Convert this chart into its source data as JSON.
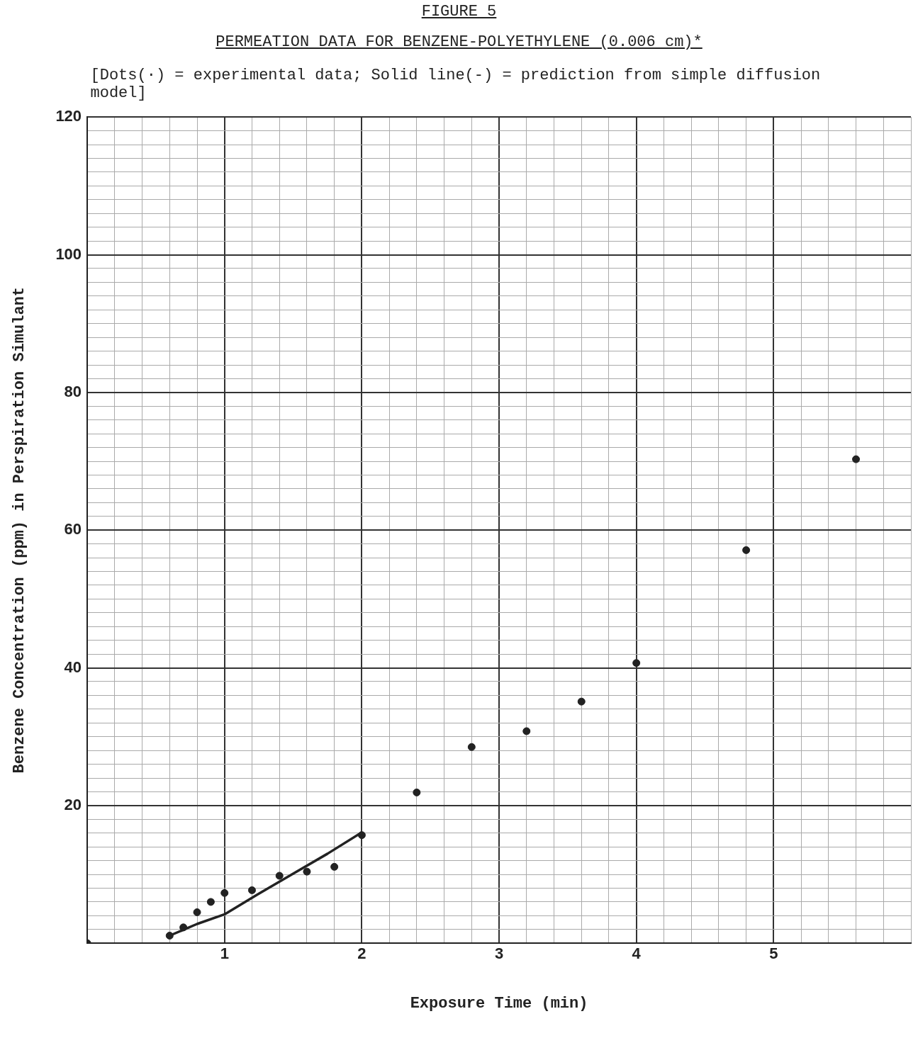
{
  "chart_data": {
    "type": "scatter",
    "title": "FIGURE 5",
    "subtitle": "PERMEATION DATA FOR BENZENE-POLYETHYLENE (0.006 cm)*",
    "annotations": [
      "[Dots(·) = experimental data; Solid line(-) = prediction from simple diffusion model]"
    ],
    "xlabel": "Exposure Time (min)",
    "ylabel": "Benzene Concentration (ppm) in Perspiration Simulant",
    "series": [
      {
        "marker": "circle",
        "color": "#222222",
        "x": [
          0,
          0.6,
          0.7,
          0.8,
          0.9,
          1.0,
          1.2,
          1.4,
          1.6,
          1.8,
          2.0,
          2.4,
          2.8,
          3.2,
          3.6,
          4.0,
          4.8,
          5.6
        ],
        "values": [
          0,
          1.1,
          2.3,
          4.5,
          6.0,
          7.3,
          7.7,
          9.8,
          10.4,
          11.1,
          15.7,
          21.9,
          28.5,
          30.8,
          35.1,
          40.7,
          57.1,
          70.3
        ]
      },
      {
        "type": "line",
        "marker": "none",
        "color": "#222222",
        "x": [
          0.6,
          0.8,
          1.0,
          1.25,
          1.5,
          1.75,
          2.0
        ],
        "values": [
          1.1,
          2.8,
          4.2,
          7.2,
          10.1,
          13.0,
          16.1
        ]
      }
    ],
    "line_style": "solid",
    "grid": true,
    "legend": false,
    "xlim": [
      0,
      6
    ],
    "xticks": [
      {
        "value": 0,
        "label": null
      },
      {
        "value": 0.2,
        "label": null
      },
      {
        "value": 0.4,
        "label": null
      },
      {
        "value": 0.6,
        "label": null
      },
      {
        "value": 0.8,
        "label": null
      },
      1,
      {
        "value": 1.2,
        "label": null
      },
      {
        "value": 1.4,
        "label": null
      },
      {
        "value": 1.6,
        "label": null
      },
      {
        "value": 1.8,
        "label": null
      },
      2,
      {
        "value": 2.2,
        "label": null
      },
      {
        "value": 2.4,
        "label": null
      },
      {
        "value": 2.6,
        "label": null
      },
      {
        "value": 2.8,
        "label": null
      },
      3,
      {
        "value": 3.2,
        "label": null
      },
      {
        "value": 3.4,
        "label": null
      },
      {
        "value": 3.6,
        "label": null
      },
      {
        "value": 3.8,
        "label": null
      },
      4,
      {
        "value": 4.2,
        "label": null
      },
      {
        "value": 4.4,
        "label": null
      },
      {
        "value": 4.6,
        "label": null
      },
      {
        "value": 4.8,
        "label": null
      },
      5,
      {
        "value": 5.2,
        "label": null
      },
      {
        "value": 5.4,
        "label": null
      },
      {
        "value": 5.6,
        "label": null
      },
      {
        "value": 5.8,
        "label": null
      },
      {
        "value": 6,
        "label": null
      }
    ],
    "ylim": [
      0,
      120
    ],
    "yticks": [
      {
        "value": 0,
        "label": null
      },
      {
        "value": 2,
        "label": null
      },
      {
        "value": 4,
        "label": null
      },
      {
        "value": 6,
        "label": null
      },
      {
        "value": 8,
        "label": null
      },
      {
        "value": 10,
        "label": null
      },
      {
        "value": 12,
        "label": null
      },
      {
        "value": 14,
        "label": null
      },
      {
        "value": 16,
        "label": null
      },
      {
        "value": 18,
        "label": null
      },
      20,
      {
        "value": 22,
        "label": null
      },
      {
        "value": 24,
        "label": null
      },
      {
        "value": 26,
        "label": null
      },
      {
        "value": 28,
        "label": null
      },
      {
        "value": 30,
        "label": null
      },
      {
        "value": 32,
        "label": null
      },
      {
        "value": 34,
        "label": null
      },
      {
        "value": 36,
        "label": null
      },
      {
        "value": 38,
        "label": null
      },
      40,
      {
        "value": 42,
        "label": null
      },
      {
        "value": 44,
        "label": null
      },
      {
        "value": 46,
        "label": null
      },
      {
        "value": 48,
        "label": null
      },
      {
        "value": 50,
        "label": null
      },
      {
        "value": 52,
        "label": null
      },
      {
        "value": 54,
        "label": null
      },
      {
        "value": 56,
        "label": null
      },
      {
        "value": 58,
        "label": null
      },
      60,
      {
        "value": 62,
        "label": null
      },
      {
        "value": 64,
        "label": null
      },
      {
        "value": 66,
        "label": null
      },
      {
        "value": 68,
        "label": null
      },
      {
        "value": 70,
        "label": null
      },
      {
        "value": 72,
        "label": null
      },
      {
        "value": 74,
        "label": null
      },
      {
        "value": 76,
        "label": null
      },
      {
        "value": 78,
        "label": null
      },
      80,
      {
        "value": 82,
        "label": null
      },
      {
        "value": 84,
        "label": null
      },
      {
        "value": 86,
        "label": null
      },
      {
        "value": 88,
        "label": null
      },
      {
        "value": 90,
        "label": null
      },
      {
        "value": 92,
        "label": null
      },
      {
        "value": 94,
        "label": null
      },
      {
        "value": 96,
        "label": null
      },
      {
        "value": 98,
        "label": null
      },
      100,
      {
        "value": 102,
        "label": null
      },
      {
        "value": 104,
        "label": null
      },
      {
        "value": 106,
        "label": null
      },
      {
        "value": 108,
        "label": null
      },
      {
        "value": 110,
        "label": null
      },
      {
        "value": 112,
        "label": null
      },
      {
        "value": 114,
        "label": null
      },
      {
        "value": 116,
        "label": null
      },
      {
        "value": 118,
        "label": null
      },
      120
    ]
  }
}
